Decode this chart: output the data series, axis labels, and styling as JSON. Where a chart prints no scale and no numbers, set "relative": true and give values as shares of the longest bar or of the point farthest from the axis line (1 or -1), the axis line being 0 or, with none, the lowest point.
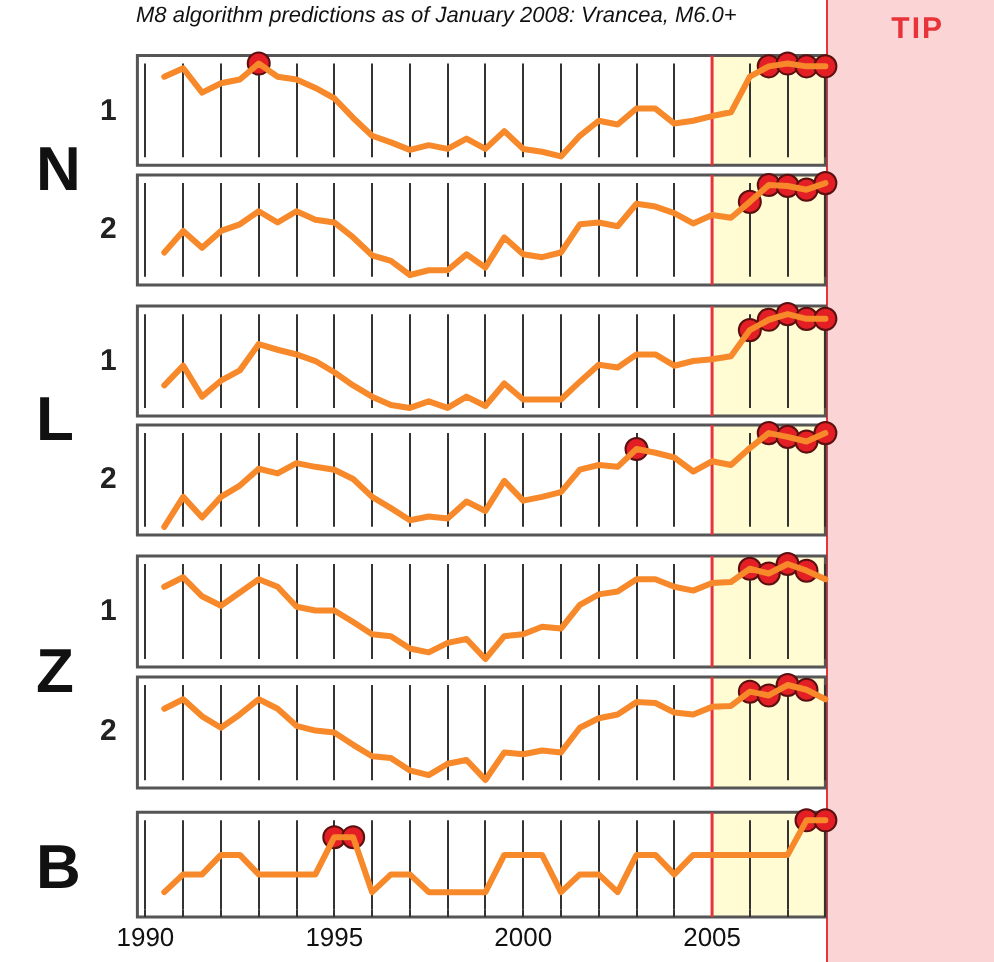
{
  "chart_data": [
    {
      "type": "line",
      "title": "M8 algorithm predictions as of January 2008: Vrancea, M6.0+",
      "ylabel": "1",
      "annotations": [
        "N",
        "TIP"
      ],
      "relative": true,
      "grid": "x",
      "tick_labels": false,
      "xlim": [
        1990,
        2008
      ],
      "xticks": [
        1990,
        {
          "value": 1991,
          "label": null
        },
        {
          "value": 1992,
          "label": null
        },
        {
          "value": 1993,
          "label": null
        },
        {
          "value": 1994,
          "label": null
        },
        1995,
        {
          "value": 1996,
          "label": null
        },
        {
          "value": 1997,
          "label": null
        },
        {
          "value": 1998,
          "label": null
        },
        {
          "value": 1999,
          "label": null
        },
        2000,
        {
          "value": 2001,
          "label": null
        },
        {
          "value": 2002,
          "label": null
        },
        {
          "value": 2003,
          "label": null
        },
        {
          "value": 2004,
          "label": null
        },
        2005,
        {
          "value": 2006,
          "label": null
        },
        {
          "value": 2007,
          "label": null
        },
        {
          "value": 2008,
          "label": null
        }
      ],
      "x": [
        1990.5,
        1991,
        1991.5,
        1992,
        1992.5,
        1993,
        1993.5,
        1994,
        1994.5,
        1995,
        1995.5,
        1996,
        1996.5,
        1997,
        1997.5,
        1998,
        1998.5,
        1999,
        1999.5,
        2000,
        2000.5,
        2001,
        2001.5,
        2002,
        2002.5,
        2003,
        2003.5,
        2004,
        2004.5,
        2005,
        2005.5,
        2006,
        2006.5,
        2007,
        2007.5,
        2008
      ],
      "bands": [
        {
          "axis": "x",
          "from": 2005,
          "to": 2008,
          "color": "#fffbd2"
        }
      ],
      "ref_lines": [
        {
          "axis": "x",
          "value": 2005,
          "color": "#e8333a"
        }
      ],
      "series": [
        {
          "color": "#f7892b",
          "marker": "none",
          "values": [
            0.86,
            0.95,
            0.69,
            0.79,
            0.83,
            1.0,
            0.86,
            0.83,
            0.74,
            0.63,
            0.42,
            0.23,
            0.16,
            0.08,
            0.13,
            0.09,
            0.2,
            0.09,
            0.28,
            0.09,
            0.06,
            0.01,
            0.23,
            0.39,
            0.35,
            0.52,
            0.52,
            0.36,
            0.39,
            0.44,
            0.48,
            0.86,
            0.97,
            1.0,
            0.97,
            0.97
          ]
        },
        {
          "type": "scatter",
          "color": "#e31e24",
          "marker": "circle",
          "x": [
            1993,
            2006.5,
            2007,
            2007.5,
            2008
          ],
          "values": [
            1.0,
            0.97,
            1.0,
            0.97,
            0.97
          ]
        }
      ]
    },
    {
      "type": "line",
      "ylabel": "2",
      "relative": true,
      "grid": "x",
      "tick_labels": false,
      "xlim": [
        1990,
        2008
      ],
      "xticks": [
        1990,
        {
          "value": 1991,
          "label": null
        },
        {
          "value": 1992,
          "label": null
        },
        {
          "value": 1993,
          "label": null
        },
        {
          "value": 1994,
          "label": null
        },
        1995,
        {
          "value": 1996,
          "label": null
        },
        {
          "value": 1997,
          "label": null
        },
        {
          "value": 1998,
          "label": null
        },
        {
          "value": 1999,
          "label": null
        },
        2000,
        {
          "value": 2001,
          "label": null
        },
        {
          "value": 2002,
          "label": null
        },
        {
          "value": 2003,
          "label": null
        },
        {
          "value": 2004,
          "label": null
        },
        2005,
        {
          "value": 2006,
          "label": null
        },
        {
          "value": 2007,
          "label": null
        },
        {
          "value": 2008,
          "label": null
        }
      ],
      "x": [
        1990.5,
        1991,
        1991.5,
        1992,
        1992.5,
        1993,
        1993.5,
        1994,
        1994.5,
        1995,
        1995.5,
        1996,
        1996.5,
        1997,
        1997.5,
        1998,
        1998.5,
        1999,
        1999.5,
        2000,
        2000.5,
        2001,
        2001.5,
        2002,
        2002.5,
        2003,
        2003.5,
        2004,
        2004.5,
        2005,
        2005.5,
        2006,
        2006.5,
        2007,
        2007.5,
        2008
      ],
      "bands": [
        {
          "axis": "x",
          "from": 2005,
          "to": 2008,
          "color": "#fffbd2"
        }
      ],
      "ref_lines": [
        {
          "axis": "x",
          "value": 2005,
          "color": "#e8333a"
        }
      ],
      "series": [
        {
          "color": "#f7892b",
          "marker": "none",
          "values": [
            0.26,
            0.49,
            0.31,
            0.49,
            0.56,
            0.7,
            0.58,
            0.7,
            0.61,
            0.58,
            0.42,
            0.23,
            0.17,
            0.02,
            0.07,
            0.07,
            0.24,
            0.1,
            0.42,
            0.24,
            0.21,
            0.26,
            0.56,
            0.58,
            0.54,
            0.78,
            0.75,
            0.68,
            0.57,
            0.66,
            0.63,
            0.8,
            0.98,
            0.97,
            0.93,
            1.0
          ]
        },
        {
          "type": "scatter",
          "color": "#e31e24",
          "marker": "circle",
          "x": [
            2006,
            2006.5,
            2007,
            2007.5,
            2008
          ],
          "values": [
            0.8,
            0.98,
            0.97,
            0.93,
            1.0
          ]
        }
      ]
    },
    {
      "type": "line",
      "ylabel": "1",
      "annotations": [
        "L"
      ],
      "relative": true,
      "grid": "x",
      "tick_labels": false,
      "xlim": [
        1990,
        2008
      ],
      "xticks": [
        1990,
        {
          "value": 1991,
          "label": null
        },
        {
          "value": 1992,
          "label": null
        },
        {
          "value": 1993,
          "label": null
        },
        {
          "value": 1994,
          "label": null
        },
        1995,
        {
          "value": 1996,
          "label": null
        },
        {
          "value": 1997,
          "label": null
        },
        {
          "value": 1998,
          "label": null
        },
        {
          "value": 1999,
          "label": null
        },
        2000,
        {
          "value": 2001,
          "label": null
        },
        {
          "value": 2002,
          "label": null
        },
        {
          "value": 2003,
          "label": null
        },
        {
          "value": 2004,
          "label": null
        },
        2005,
        {
          "value": 2006,
          "label": null
        },
        {
          "value": 2007,
          "label": null
        },
        {
          "value": 2008,
          "label": null
        }
      ],
      "x": [
        1990.5,
        1991,
        1991.5,
        1992,
        1992.5,
        1993,
        1993.5,
        1994,
        1994.5,
        1995,
        1995.5,
        1996,
        1996.5,
        1997,
        1997.5,
        1998,
        1998.5,
        1999,
        1999.5,
        2000,
        2000.5,
        2001,
        2001.5,
        2002,
        2002.5,
        2003,
        2003.5,
        2004,
        2004.5,
        2005,
        2005.5,
        2006,
        2006.5,
        2007,
        2007.5,
        2008
      ],
      "bands": [
        {
          "axis": "x",
          "from": 2005,
          "to": 2008,
          "color": "#fffbd2"
        }
      ],
      "ref_lines": [
        {
          "axis": "x",
          "value": 2005,
          "color": "#e8333a"
        }
      ],
      "series": [
        {
          "color": "#f7892b",
          "marker": "none",
          "values": [
            0.24,
            0.45,
            0.12,
            0.29,
            0.4,
            0.68,
            0.62,
            0.57,
            0.5,
            0.38,
            0.24,
            0.12,
            0.03,
            0,
            0.07,
            0,
            0.12,
            0.02,
            0.26,
            0.09,
            0.09,
            0.09,
            0.28,
            0.46,
            0.43,
            0.57,
            0.57,
            0.45,
            0.5,
            0.52,
            0.55,
            0.83,
            0.94,
            1.0,
            0.95,
            0.95
          ]
        },
        {
          "type": "scatter",
          "color": "#e31e24",
          "marker": "circle",
          "x": [
            2006,
            2006.5,
            2007,
            2007.5,
            2008
          ],
          "values": [
            0.83,
            0.94,
            1.0,
            0.95,
            0.95
          ]
        }
      ]
    },
    {
      "type": "line",
      "ylabel": "2",
      "relative": true,
      "grid": "x",
      "tick_labels": false,
      "xlim": [
        1990,
        2008
      ],
      "xticks": [
        1990,
        {
          "value": 1991,
          "label": null
        },
        {
          "value": 1992,
          "label": null
        },
        {
          "value": 1993,
          "label": null
        },
        {
          "value": 1994,
          "label": null
        },
        1995,
        {
          "value": 1996,
          "label": null
        },
        {
          "value": 1997,
          "label": null
        },
        {
          "value": 1998,
          "label": null
        },
        {
          "value": 1999,
          "label": null
        },
        2000,
        {
          "value": 2001,
          "label": null
        },
        {
          "value": 2002,
          "label": null
        },
        {
          "value": 2003,
          "label": null
        },
        {
          "value": 2004,
          "label": null
        },
        2005,
        {
          "value": 2006,
          "label": null
        },
        {
          "value": 2007,
          "label": null
        },
        {
          "value": 2008,
          "label": null
        }
      ],
      "x": [
        1990.5,
        1991,
        1991.5,
        1992,
        1992.5,
        1993,
        1993.5,
        1994,
        1994.5,
        1995,
        1995.5,
        1996,
        1996.5,
        1997,
        1997.5,
        1998,
        1998.5,
        1999,
        1999.5,
        2000,
        2000.5,
        2001,
        2001.5,
        2002,
        2002.5,
        2003,
        2003.5,
        2004,
        2004.5,
        2005,
        2005.5,
        2006,
        2006.5,
        2007,
        2007.5,
        2008
      ],
      "bands": [
        {
          "axis": "x",
          "from": 2005,
          "to": 2008,
          "color": "#fffbd2"
        }
      ],
      "ref_lines": [
        {
          "axis": "x",
          "value": 2005,
          "color": "#e8333a"
        }
      ],
      "series": [
        {
          "color": "#f7892b",
          "marker": "none",
          "values": [
            0,
            0.32,
            0.1,
            0.32,
            0.44,
            0.62,
            0.57,
            0.68,
            0.64,
            0.61,
            0.51,
            0.32,
            0.2,
            0.07,
            0.11,
            0.09,
            0.27,
            0.17,
            0.49,
            0.28,
            0.32,
            0.37,
            0.61,
            0.66,
            0.64,
            0.83,
            0.79,
            0.74,
            0.59,
            0.7,
            0.66,
            0.84,
            1.0,
            0.96,
            0.91,
            1.0
          ]
        },
        {
          "type": "scatter",
          "color": "#e31e24",
          "marker": "circle",
          "x": [
            2003,
            2006.5,
            2007,
            2007.5,
            2008
          ],
          "values": [
            0.83,
            1.0,
            0.96,
            0.91,
            1.0
          ]
        }
      ]
    },
    {
      "type": "line",
      "ylabel": "1",
      "annotations": [
        "Z"
      ],
      "relative": true,
      "grid": "x",
      "tick_labels": false,
      "xlim": [
        1990,
        2008
      ],
      "xticks": [
        1990,
        {
          "value": 1991,
          "label": null
        },
        {
          "value": 1992,
          "label": null
        },
        {
          "value": 1993,
          "label": null
        },
        {
          "value": 1994,
          "label": null
        },
        1995,
        {
          "value": 1996,
          "label": null
        },
        {
          "value": 1997,
          "label": null
        },
        {
          "value": 1998,
          "label": null
        },
        {
          "value": 1999,
          "label": null
        },
        2000,
        {
          "value": 2001,
          "label": null
        },
        {
          "value": 2002,
          "label": null
        },
        {
          "value": 2003,
          "label": null
        },
        {
          "value": 2004,
          "label": null
        },
        2005,
        {
          "value": 2006,
          "label": null
        },
        {
          "value": 2007,
          "label": null
        },
        {
          "value": 2008,
          "label": null
        }
      ],
      "x": [
        1990.5,
        1991,
        1991.5,
        1992,
        1992.5,
        1993,
        1993.5,
        1994,
        1994.5,
        1995,
        1995.5,
        1996,
        1996.5,
        1997,
        1997.5,
        1998,
        1998.5,
        1999,
        1999.5,
        2000,
        2000.5,
        2001,
        2001.5,
        2002,
        2002.5,
        2003,
        2003.5,
        2004,
        2004.5,
        2005,
        2005.5,
        2006,
        2006.5,
        2007,
        2007.5,
        2008
      ],
      "bands": [
        {
          "axis": "x",
          "from": 2005,
          "to": 2008,
          "color": "#fffbd2"
        }
      ],
      "ref_lines": [
        {
          "axis": "x",
          "value": 2005,
          "color": "#e8333a"
        }
      ],
      "series": [
        {
          "color": "#f7892b",
          "marker": "none",
          "values": [
            0.76,
            0.86,
            0.66,
            0.56,
            0.7,
            0.84,
            0.76,
            0.55,
            0.51,
            0.51,
            0.39,
            0.26,
            0.24,
            0.11,
            0.07,
            0.17,
            0.21,
            0,
            0.24,
            0.26,
            0.34,
            0.32,
            0.57,
            0.68,
            0.71,
            0.84,
            0.84,
            0.76,
            0.72,
            0.8,
            0.81,
            0.95,
            0.9,
            1.0,
            0.93,
            0.84
          ]
        },
        {
          "type": "scatter",
          "color": "#e31e24",
          "marker": "circle",
          "x": [
            2006,
            2006.5,
            2007,
            2007.5
          ],
          "values": [
            0.95,
            0.9,
            1.0,
            0.93
          ]
        }
      ]
    },
    {
      "type": "line",
      "ylabel": "2",
      "relative": true,
      "grid": "x",
      "tick_labels": false,
      "xlim": [
        1990,
        2008
      ],
      "xticks": [
        1990,
        {
          "value": 1991,
          "label": null
        },
        {
          "value": 1992,
          "label": null
        },
        {
          "value": 1993,
          "label": null
        },
        {
          "value": 1994,
          "label": null
        },
        1995,
        {
          "value": 1996,
          "label": null
        },
        {
          "value": 1997,
          "label": null
        },
        {
          "value": 1998,
          "label": null
        },
        {
          "value": 1999,
          "label": null
        },
        2000,
        {
          "value": 2001,
          "label": null
        },
        {
          "value": 2002,
          "label": null
        },
        {
          "value": 2003,
          "label": null
        },
        {
          "value": 2004,
          "label": null
        },
        2005,
        {
          "value": 2006,
          "label": null
        },
        {
          "value": 2007,
          "label": null
        },
        {
          "value": 2008,
          "label": null
        }
      ],
      "x": [
        1990.5,
        1991,
        1991.5,
        1992,
        1992.5,
        1993,
        1993.5,
        1994,
        1994.5,
        1995,
        1995.5,
        1996,
        1996.5,
        1997,
        1997.5,
        1998,
        1998.5,
        1999,
        1999.5,
        2000,
        2000.5,
        2001,
        2001.5,
        2002,
        2002.5,
        2003,
        2003.5,
        2004,
        2004.5,
        2005,
        2005.5,
        2006,
        2006.5,
        2007,
        2007.5,
        2008
      ],
      "bands": [
        {
          "axis": "x",
          "from": 2005,
          "to": 2008,
          "color": "#fffbd2"
        }
      ],
      "ref_lines": [
        {
          "axis": "x",
          "value": 2005,
          "color": "#e8333a"
        }
      ],
      "series": [
        {
          "color": "#f7892b",
          "marker": "none",
          "values": [
            0.75,
            0.85,
            0.67,
            0.55,
            0.69,
            0.85,
            0.75,
            0.57,
            0.52,
            0.5,
            0.37,
            0.25,
            0.23,
            0.1,
            0.05,
            0.17,
            0.21,
            0,
            0.29,
            0.27,
            0.31,
            0.29,
            0.55,
            0.65,
            0.69,
            0.82,
            0.81,
            0.71,
            0.69,
            0.77,
            0.78,
            0.93,
            0.89,
            1.0,
            0.95,
            0.85
          ]
        },
        {
          "type": "scatter",
          "color": "#e31e24",
          "marker": "circle",
          "x": [
            2006,
            2006.5,
            2007,
            2007.5
          ],
          "values": [
            0.93,
            0.89,
            1.0,
            0.95
          ]
        }
      ]
    },
    {
      "type": "line",
      "annotations": [
        "B"
      ],
      "relative": true,
      "grid": "x",
      "tick_labels": "x",
      "xlim": [
        1990,
        2008
      ],
      "xticks": [
        1990,
        {
          "value": 1991,
          "label": null
        },
        {
          "value": 1992,
          "label": null
        },
        {
          "value": 1993,
          "label": null
        },
        {
          "value": 1994,
          "label": null
        },
        1995,
        {
          "value": 1996,
          "label": null
        },
        {
          "value": 1997,
          "label": null
        },
        {
          "value": 1998,
          "label": null
        },
        {
          "value": 1999,
          "label": null
        },
        2000,
        {
          "value": 2001,
          "label": null
        },
        {
          "value": 2002,
          "label": null
        },
        {
          "value": 2003,
          "label": null
        },
        {
          "value": 2004,
          "label": null
        },
        2005,
        {
          "value": 2006,
          "label": null
        },
        {
          "value": 2007,
          "label": null
        },
        {
          "value": 2008,
          "label": null
        }
      ],
      "x": [
        1990.5,
        1991,
        1991.5,
        1992,
        1992.5,
        1993,
        1993.5,
        1994,
        1994.5,
        1995,
        1995.5,
        1996,
        1996.5,
        1997,
        1997.5,
        1998,
        1998.5,
        1999,
        1999.5,
        2000,
        2000.5,
        2001,
        2001.5,
        2002,
        2002.5,
        2003,
        2003.5,
        2004,
        2004.5,
        2005,
        2005.5,
        2006,
        2006.5,
        2007,
        2007.5,
        2008
      ],
      "bands": [
        {
          "axis": "x",
          "from": 2005,
          "to": 2008,
          "color": "#fffbd2"
        }
      ],
      "ref_lines": [
        {
          "axis": "x",
          "value": 2005,
          "color": "#e8333a"
        }
      ],
      "series": [
        {
          "color": "#f7892b",
          "marker": "none",
          "values": [
            0.19,
            0.39,
            0.39,
            0.61,
            0.61,
            0.39,
            0.39,
            0.39,
            0.39,
            0.81,
            0.81,
            0.19,
            0.39,
            0.39,
            0.19,
            0.19,
            0.19,
            0.19,
            0.61,
            0.61,
            0.61,
            0.19,
            0.39,
            0.39,
            0.19,
            0.61,
            0.61,
            0.39,
            0.61,
            0.61,
            0.61,
            0.61,
            0.61,
            0.61,
            1.0,
            1.0
          ]
        },
        {
          "type": "scatter",
          "color": "#e31e24",
          "marker": "circle",
          "x": [
            1995,
            1995.5,
            2007.5,
            2008
          ],
          "values": [
            0.81,
            0.81,
            1.0,
            1.0
          ]
        }
      ]
    }
  ]
}
